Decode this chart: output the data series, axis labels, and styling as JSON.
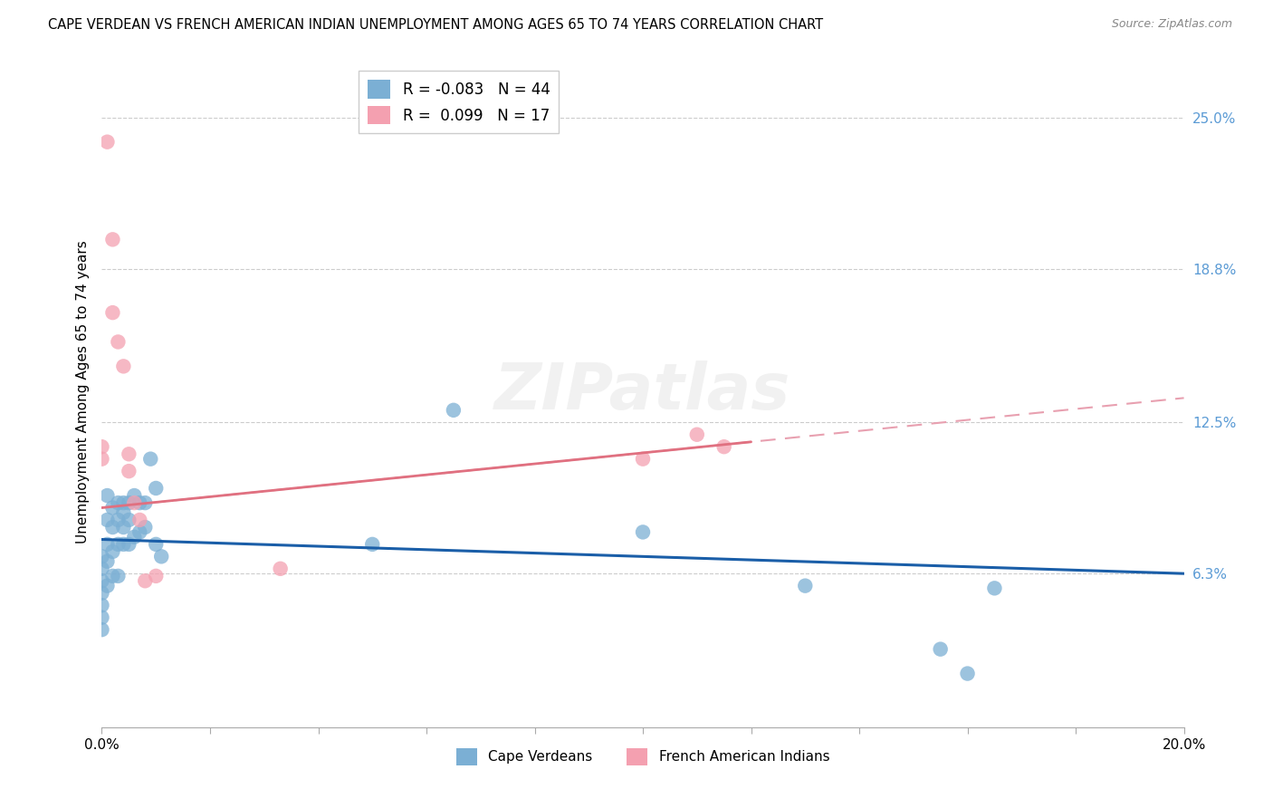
{
  "title": "CAPE VERDEAN VS FRENCH AMERICAN INDIAN UNEMPLOYMENT AMONG AGES 65 TO 74 YEARS CORRELATION CHART",
  "source": "Source: ZipAtlas.com",
  "ylabel": "Unemployment Among Ages 65 to 74 years",
  "xlim": [
    0.0,
    0.2
  ],
  "ylim": [
    0.0,
    0.275
  ],
  "xtick_positions": [
    0.0,
    0.02,
    0.04,
    0.06,
    0.08,
    0.1,
    0.12,
    0.14,
    0.16,
    0.18,
    0.2
  ],
  "ytick_right_vals": [
    0.063,
    0.125,
    0.188,
    0.25
  ],
  "ytick_right_labels": [
    "6.3%",
    "12.5%",
    "18.8%",
    "25.0%"
  ],
  "grid_color": "#cccccc",
  "background_color": "#ffffff",
  "watermark": "ZIPatlas",
  "cape_verdean_dot_color": "#7bafd4",
  "french_indian_dot_color": "#f4a0b0",
  "cape_verdean_line_color": "#1a5ea8",
  "french_indian_line_color": "#e07080",
  "french_indian_dash_color": "#e8a0b0",
  "cape_verdean_R": -0.083,
  "cape_verdean_N": 44,
  "french_indian_R": 0.099,
  "french_indian_N": 17,
  "cv_line_y_start": 0.077,
  "cv_line_y_end": 0.063,
  "fi_line_y_start": 0.09,
  "fi_line_y_end": 0.135,
  "cape_verdeans_x": [
    0.0,
    0.0,
    0.0,
    0.0,
    0.0,
    0.0,
    0.0,
    0.001,
    0.001,
    0.001,
    0.001,
    0.001,
    0.002,
    0.002,
    0.002,
    0.002,
    0.003,
    0.003,
    0.003,
    0.003,
    0.004,
    0.004,
    0.004,
    0.004,
    0.005,
    0.005,
    0.005,
    0.006,
    0.006,
    0.007,
    0.007,
    0.008,
    0.008,
    0.009,
    0.01,
    0.01,
    0.011,
    0.05,
    0.065,
    0.1,
    0.13,
    0.155,
    0.16,
    0.165
  ],
  "cape_verdeans_y": [
    0.07,
    0.065,
    0.06,
    0.055,
    0.05,
    0.045,
    0.04,
    0.095,
    0.085,
    0.075,
    0.068,
    0.058,
    0.09,
    0.082,
    0.072,
    0.062,
    0.092,
    0.085,
    0.075,
    0.062,
    0.092,
    0.088,
    0.082,
    0.075,
    0.092,
    0.085,
    0.075,
    0.095,
    0.078,
    0.092,
    0.08,
    0.092,
    0.082,
    0.11,
    0.098,
    0.075,
    0.07,
    0.075,
    0.13,
    0.08,
    0.058,
    0.032,
    0.022,
    0.057
  ],
  "french_indians_x": [
    0.0,
    0.0,
    0.001,
    0.002,
    0.002,
    0.003,
    0.004,
    0.005,
    0.005,
    0.006,
    0.007,
    0.008,
    0.01,
    0.033,
    0.1,
    0.11,
    0.115
  ],
  "french_indians_y": [
    0.115,
    0.11,
    0.24,
    0.2,
    0.17,
    0.158,
    0.148,
    0.112,
    0.105,
    0.092,
    0.085,
    0.06,
    0.062,
    0.065,
    0.11,
    0.12,
    0.115
  ]
}
